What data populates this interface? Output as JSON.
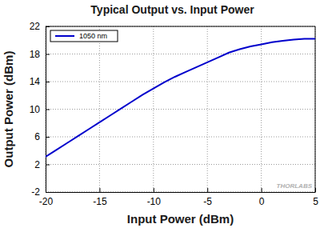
{
  "chart_data": {
    "type": "line",
    "title": "Typical Output vs. Input Power",
    "x_label": "Input Power (dBm)",
    "y_label": "Output Power (dBm)",
    "x": [
      -20,
      -19,
      -18,
      -17,
      -16,
      -15,
      -14,
      -13,
      -12,
      -11,
      -10,
      -9,
      -8,
      -7,
      -6,
      -5,
      -4,
      -3,
      -2,
      -1,
      0,
      1,
      2,
      3,
      4,
      5
    ],
    "series": [
      {
        "name": "1050 nm",
        "color": "#0000cc",
        "values": [
          3.1,
          4.1,
          5.1,
          6.1,
          7.1,
          8.1,
          9.1,
          10.1,
          11.1,
          12.1,
          13.0,
          13.9,
          14.7,
          15.4,
          16.1,
          16.8,
          17.5,
          18.2,
          18.7,
          19.1,
          19.4,
          19.7,
          19.9,
          20.1,
          20.2,
          20.2
        ]
      }
    ],
    "xlim": [
      -20,
      5
    ],
    "xticks": [
      -20,
      -15,
      -10,
      -5,
      0,
      5
    ],
    "ylim": [
      -2,
      22
    ],
    "yticks": [
      -2,
      2,
      6,
      10,
      14,
      18,
      22
    ],
    "grid": true,
    "legend": "upper left",
    "annotations": [
      "THORLABS"
    ]
  }
}
